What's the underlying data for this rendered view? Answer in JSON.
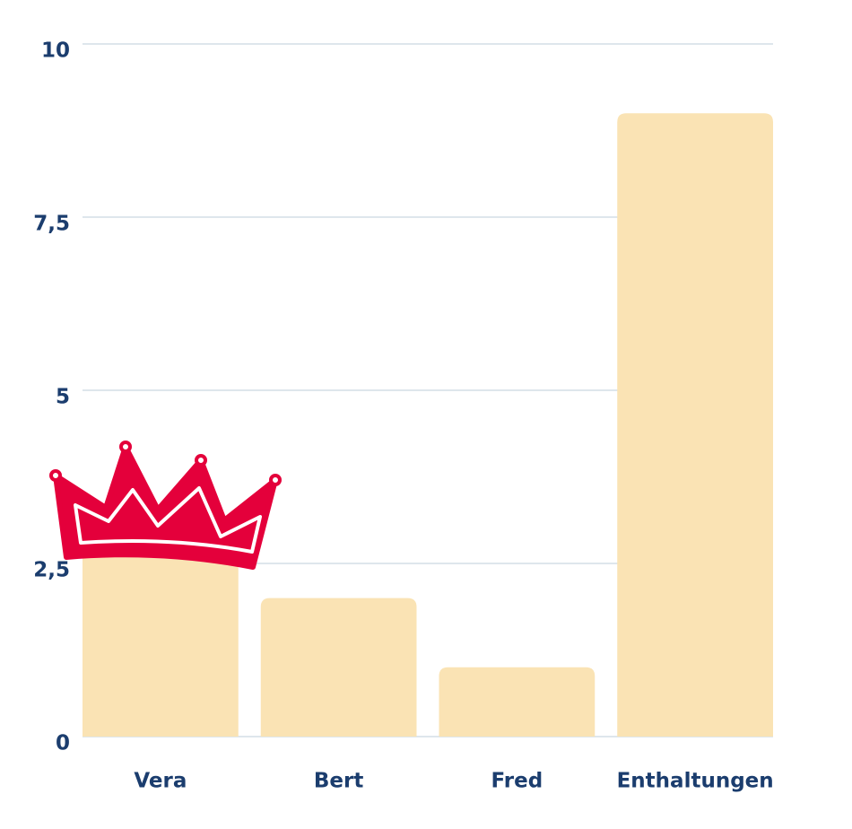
{
  "chart_data": {
    "type": "bar",
    "categories": [
      "Vera",
      "Bert",
      "Fred",
      "Enthaltungen"
    ],
    "values": [
      3,
      2,
      1,
      9
    ],
    "color": "#fae3b4",
    "ylim": [
      0,
      10
    ],
    "yticks": [
      0,
      {
        "value": 2.5,
        "label": "2,5"
      },
      5,
      {
        "value": 7.5,
        "label": "7,5"
      },
      10
    ],
    "grid": true
  }
}
